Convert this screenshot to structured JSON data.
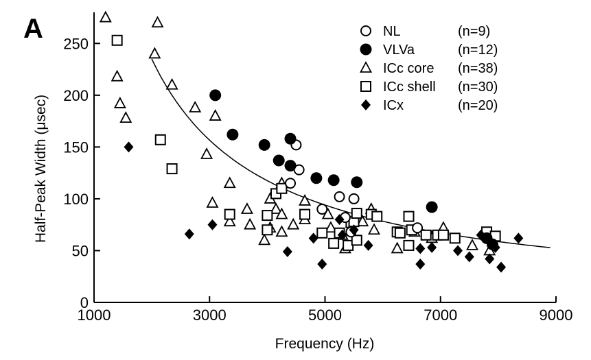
{
  "chart_data": {
    "type": "scatter",
    "panel_label": "A",
    "xlabel": "Frequency (Hz)",
    "ylabel": "Half-Peak Width (μsec)",
    "xlim": [
      1000,
      9000
    ],
    "ylim": [
      0,
      280
    ],
    "x_ticks": [
      1000,
      3000,
      5000,
      7000,
      9000
    ],
    "y_ticks": [
      0,
      50,
      100,
      150,
      200,
      250
    ],
    "grid": false,
    "legend_position": "top-right",
    "fit_curve": {
      "form": "y = k / x",
      "k": 470000,
      "x_range": [
        2000,
        8900
      ]
    },
    "series": [
      {
        "name": "NL",
        "count_label": "(n=9)",
        "marker": "open-circle",
        "points": [
          [
            4400,
            115
          ],
          [
            4500,
            152
          ],
          [
            4550,
            128
          ],
          [
            4950,
            90
          ],
          [
            5250,
            102
          ],
          [
            5500,
            100
          ],
          [
            5350,
            82
          ],
          [
            5450,
            68
          ],
          [
            6600,
            72
          ]
        ]
      },
      {
        "name": "VLVa",
        "count_label": "(n=12)",
        "marker": "filled-circle",
        "points": [
          [
            3100,
            200
          ],
          [
            3400,
            162
          ],
          [
            3950,
            152
          ],
          [
            4200,
            137
          ],
          [
            4400,
            132
          ],
          [
            4400,
            158
          ],
          [
            4850,
            120
          ],
          [
            5150,
            118
          ],
          [
            5550,
            116
          ],
          [
            6850,
            92
          ],
          [
            7800,
            62
          ],
          [
            7900,
            56
          ]
        ]
      },
      {
        "name": "ICc core",
        "count_label": "(n=38)",
        "marker": "open-triangle",
        "points": [
          [
            1200,
            275
          ],
          [
            1400,
            218
          ],
          [
            1450,
            192
          ],
          [
            1550,
            178
          ],
          [
            2050,
            240
          ],
          [
            2100,
            270
          ],
          [
            2350,
            210
          ],
          [
            2750,
            188
          ],
          [
            2950,
            143
          ],
          [
            3050,
            96
          ],
          [
            3100,
            180
          ],
          [
            3350,
            115
          ],
          [
            3350,
            78
          ],
          [
            3650,
            90
          ],
          [
            3700,
            75
          ],
          [
            3950,
            60
          ],
          [
            4050,
            100
          ],
          [
            4050,
            72
          ],
          [
            4150,
            90
          ],
          [
            4250,
            115
          ],
          [
            4250,
            68
          ],
          [
            4250,
            85
          ],
          [
            4450,
            75
          ],
          [
            4650,
            98
          ],
          [
            4650,
            80
          ],
          [
            5050,
            85
          ],
          [
            5100,
            72
          ],
          [
            5300,
            65
          ],
          [
            5350,
            52
          ],
          [
            5650,
            78
          ],
          [
            5800,
            90
          ],
          [
            5850,
            70
          ],
          [
            6250,
            52
          ],
          [
            6550,
            68
          ],
          [
            6850,
            62
          ],
          [
            7050,
            72
          ],
          [
            7550,
            55
          ],
          [
            7850,
            50
          ]
        ]
      },
      {
        "name": "ICc shell",
        "count_label": "(n=30)",
        "marker": "open-square",
        "points": [
          [
            1400,
            253
          ],
          [
            2150,
            157
          ],
          [
            2350,
            129
          ],
          [
            3350,
            85
          ],
          [
            4000,
            84
          ],
          [
            4000,
            70
          ],
          [
            4150,
            105
          ],
          [
            4250,
            110
          ],
          [
            4650,
            85
          ],
          [
            4950,
            67
          ],
          [
            5150,
            57
          ],
          [
            5250,
            67
          ],
          [
            5400,
            55
          ],
          [
            5450,
            77
          ],
          [
            5500,
            78
          ],
          [
            5550,
            86
          ],
          [
            5550,
            60
          ],
          [
            5800,
            85
          ],
          [
            5900,
            83
          ],
          [
            6250,
            68
          ],
          [
            6300,
            67
          ],
          [
            6450,
            55
          ],
          [
            6450,
            83
          ],
          [
            6500,
            70
          ],
          [
            6750,
            65
          ],
          [
            6950,
            65
          ],
          [
            7050,
            65
          ],
          [
            7250,
            62
          ],
          [
            7800,
            68
          ],
          [
            7950,
            64
          ]
        ]
      },
      {
        "name": "ICx",
        "count_label": "(n=20)",
        "marker": "filled-diamond",
        "points": [
          [
            1600,
            150
          ],
          [
            2650,
            66
          ],
          [
            3050,
            75
          ],
          [
            4350,
            49
          ],
          [
            4800,
            62
          ],
          [
            4950,
            37
          ],
          [
            5250,
            80
          ],
          [
            5300,
            65
          ],
          [
            5500,
            70
          ],
          [
            5750,
            55
          ],
          [
            6650,
            52
          ],
          [
            6650,
            37
          ],
          [
            6850,
            53
          ],
          [
            7300,
            50
          ],
          [
            7500,
            44
          ],
          [
            7700,
            65
          ],
          [
            7850,
            42
          ],
          [
            7950,
            53
          ],
          [
            8050,
            34
          ],
          [
            8350,
            62
          ]
        ]
      }
    ]
  }
}
